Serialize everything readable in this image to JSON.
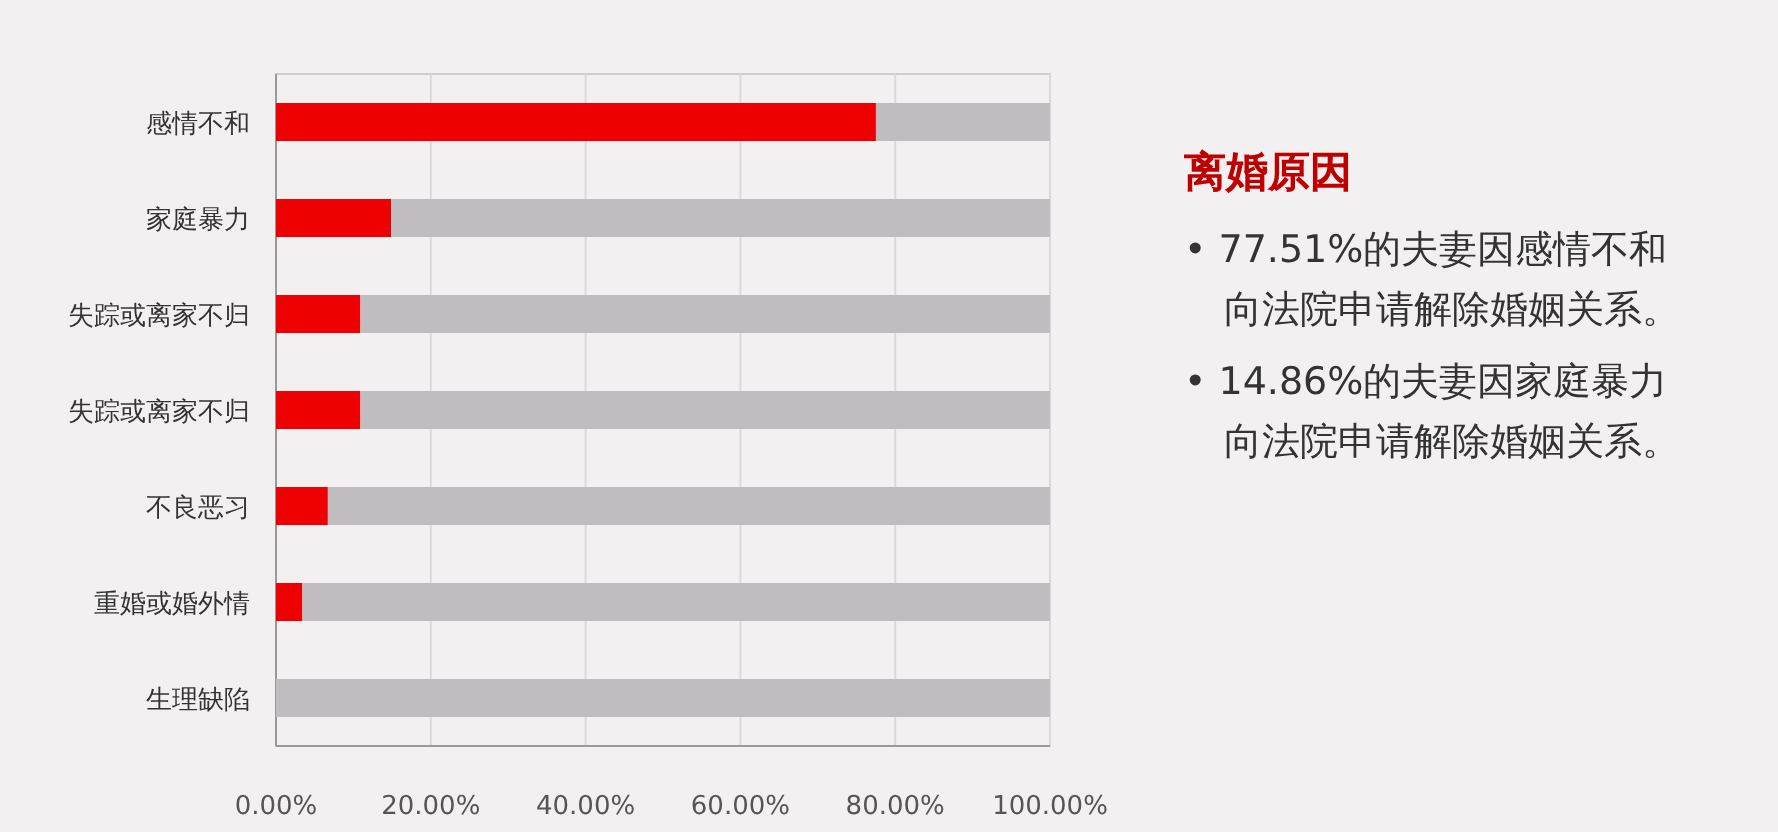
{
  "chart_data": [
    {
      "type": "bar",
      "orientation": "horizontal",
      "stacked": true,
      "categories": [
        "感情不和",
        "家庭暴力",
        "失踪或离家不归",
        "失踪或离家不归",
        "不良恶习",
        "重婚或婚外情",
        "生理缺陷"
      ],
      "series": [
        {
          "color": "#ee0000",
          "values": [
            77.51,
            14.86,
            10.9,
            10.9,
            6.7,
            3.4,
            0
          ]
        },
        {
          "color": "#c0bcbf",
          "values": [
            22.49,
            85.14,
            89.1,
            89.1,
            93.3,
            96.6,
            100
          ]
        }
      ],
      "xlim": [
        0,
        100
      ],
      "xticks": [
        {
          "value": 0,
          "label": "0.00%"
        },
        {
          "value": 20,
          "label": "20.00%"
        },
        {
          "value": 40,
          "label": "40.00%"
        },
        {
          "value": 60,
          "label": "60.00%"
        },
        {
          "value": 80,
          "label": "80.00%"
        },
        {
          "value": 100,
          "label": "100.00%"
        }
      ],
      "grid": "x"
    },
    {
      "type": "other",
      "title": "离婚原因",
      "annotations": [
        "• 77.51%的夫妻因感情不和向法院申请解除婚姻关系。",
        "• 14.86%的夫妻因家庭暴力向法院申请解除婚姻关系。"
      ]
    }
  ]
}
